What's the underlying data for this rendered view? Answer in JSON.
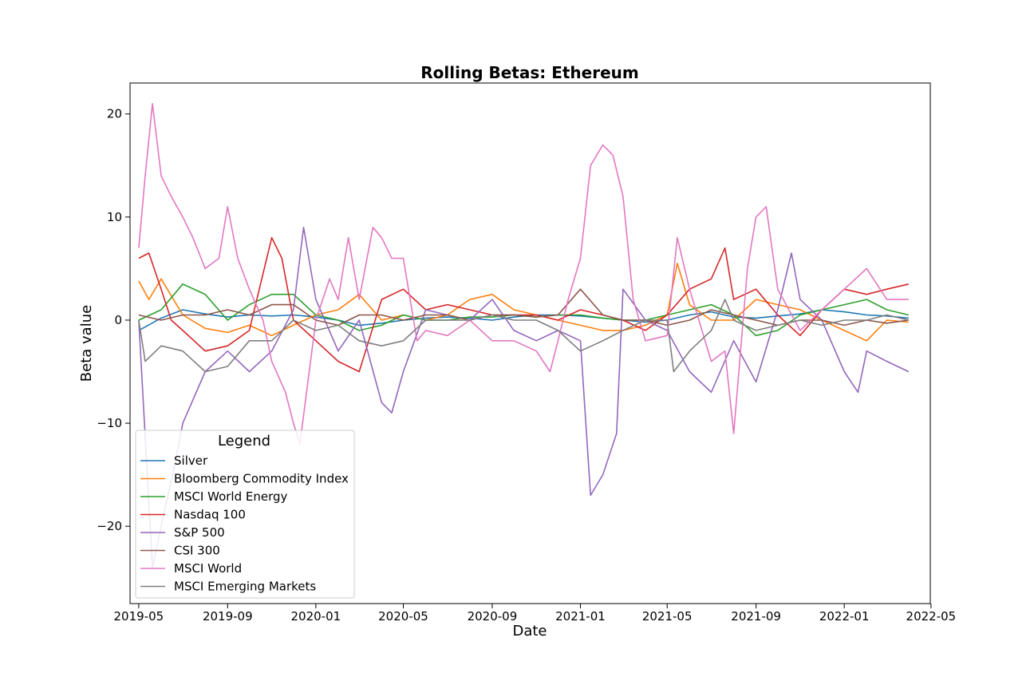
{
  "chart_data": {
    "type": "line",
    "title": "Rolling Betas: Ethereum",
    "xlabel": "Date",
    "ylabel": "Beta value",
    "xlim": [
      "2019-04-19",
      "2022-04-30"
    ],
    "ylim": [
      -27.5,
      23.0
    ],
    "x_ticks": [
      "2019-05-01",
      "2019-09-01",
      "2020-01-01",
      "2020-05-01",
      "2020-09-01",
      "2021-01-01",
      "2021-05-01",
      "2021-09-01",
      "2022-01-01",
      "2022-05-01"
    ],
    "x_tick_labels": [
      "2019-05",
      "2019-09",
      "2020-01",
      "2020-05",
      "2020-09",
      "2021-01",
      "2021-05",
      "2021-09",
      "2022-01",
      "2022-05"
    ],
    "y_ticks": [
      -20,
      -10,
      0,
      10,
      20
    ],
    "y_tick_labels": [
      "−20",
      "−10",
      "0",
      "10",
      "20"
    ],
    "grid": false,
    "legend": {
      "title": "Legend",
      "placement": "lower-left"
    },
    "series": [
      {
        "name": "Silver",
        "color": "#1f77b4",
        "x": [
          "2019-05-01",
          "2019-06-01",
          "2019-07-01",
          "2019-08-01",
          "2019-09-01",
          "2019-10-01",
          "2019-11-01",
          "2019-12-01",
          "2020-01-01",
          "2020-02-01",
          "2020-03-01",
          "2020-04-01",
          "2020-05-01",
          "2020-06-01",
          "2020-07-01",
          "2020-08-01",
          "2020-09-01",
          "2020-10-01",
          "2020-11-01",
          "2020-12-01",
          "2021-01-01",
          "2021-02-01",
          "2021-03-01",
          "2021-04-01",
          "2021-05-01",
          "2021-06-01",
          "2021-07-01",
          "2021-08-01",
          "2021-09-01",
          "2021-10-01",
          "2021-11-01",
          "2021-12-01",
          "2022-01-01",
          "2022-02-01",
          "2022-03-01",
          "2022-03-31"
        ],
        "y": [
          -1.0,
          0.2,
          1.0,
          0.6,
          0.3,
          0.5,
          0.4,
          0.5,
          0.3,
          0.0,
          -0.5,
          -0.3,
          0.0,
          0.2,
          0.3,
          0.2,
          0.0,
          0.3,
          0.5,
          0.5,
          0.4,
          0.2,
          0.0,
          -0.2,
          0.0,
          0.5,
          0.8,
          0.3,
          0.2,
          0.4,
          0.6,
          1.0,
          0.8,
          0.5,
          0.4,
          0.2
        ]
      },
      {
        "name": "Bloomberg Commodity Index",
        "color": "#ff7f0e",
        "x": [
          "2019-05-01",
          "2019-05-15",
          "2019-06-01",
          "2019-07-01",
          "2019-08-01",
          "2019-09-01",
          "2019-10-01",
          "2019-11-01",
          "2019-12-01",
          "2020-01-01",
          "2020-02-01",
          "2020-03-01",
          "2020-04-01",
          "2020-05-01",
          "2020-06-01",
          "2020-07-01",
          "2020-08-01",
          "2020-09-01",
          "2020-10-01",
          "2020-11-01",
          "2020-12-01",
          "2021-01-01",
          "2021-02-01",
          "2021-03-01",
          "2021-04-01",
          "2021-05-01",
          "2021-05-15",
          "2021-06-01",
          "2021-07-01",
          "2021-08-01",
          "2021-09-01",
          "2021-10-01",
          "2021-11-01",
          "2021-12-01",
          "2022-01-01",
          "2022-02-01",
          "2022-03-01",
          "2022-03-31"
        ],
        "y": [
          3.8,
          2.0,
          4.0,
          0.5,
          -0.8,
          -1.2,
          -0.5,
          -1.5,
          -0.5,
          0.5,
          1.0,
          2.5,
          0.0,
          0.5,
          0.0,
          0.5,
          2.0,
          2.5,
          1.0,
          0.5,
          0.0,
          -0.5,
          -1.0,
          -1.0,
          -0.5,
          0.5,
          5.5,
          1.5,
          0.0,
          0.0,
          2.0,
          1.5,
          1.0,
          0.0,
          -1.0,
          -2.0,
          0.0,
          -0.2
        ]
      },
      {
        "name": "MSCI World Energy",
        "color": "#2ca02c",
        "x": [
          "2019-05-01",
          "2019-06-01",
          "2019-07-01",
          "2019-08-01",
          "2019-09-01",
          "2019-10-01",
          "2019-11-01",
          "2019-12-01",
          "2020-01-01",
          "2020-02-01",
          "2020-03-01",
          "2020-04-01",
          "2020-05-01",
          "2020-06-01",
          "2020-07-01",
          "2020-08-01",
          "2020-09-01",
          "2020-10-01",
          "2020-11-01",
          "2020-12-01",
          "2021-01-01",
          "2021-02-01",
          "2021-03-01",
          "2021-04-01",
          "2021-05-01",
          "2021-06-01",
          "2021-07-01",
          "2021-08-01",
          "2021-09-01",
          "2021-10-01",
          "2021-11-01",
          "2021-12-01",
          "2022-01-01",
          "2022-02-01",
          "2022-03-01",
          "2022-03-31"
        ],
        "y": [
          0.0,
          1.0,
          3.5,
          2.5,
          0.0,
          1.5,
          2.5,
          2.5,
          0.5,
          0.0,
          -1.0,
          -0.5,
          0.5,
          0.0,
          0.0,
          0.3,
          0.3,
          0.5,
          0.3,
          0.5,
          0.5,
          0.2,
          0.0,
          0.0,
          0.5,
          1.0,
          1.5,
          0.5,
          -1.5,
          -1.0,
          0.5,
          1.0,
          1.5,
          2.0,
          1.0,
          0.5
        ]
      },
      {
        "name": "Nasdaq 100",
        "color": "#d62728",
        "x": [
          "2019-05-01",
          "2019-05-15",
          "2019-06-01",
          "2019-06-15",
          "2019-07-01",
          "2019-08-01",
          "2019-09-01",
          "2019-10-01",
          "2019-11-01",
          "2019-11-15",
          "2019-12-01",
          "2020-01-01",
          "2020-02-01",
          "2020-03-01",
          "2020-04-01",
          "2020-05-01",
          "2020-06-01",
          "2020-07-01",
          "2020-08-01",
          "2020-09-01",
          "2020-10-01",
          "2020-11-01",
          "2020-12-01",
          "2021-01-01",
          "2021-02-01",
          "2021-03-01",
          "2021-04-01",
          "2021-05-01",
          "2021-06-01",
          "2021-07-01",
          "2021-07-20",
          "2021-08-01",
          "2021-09-01",
          "2021-10-01",
          "2021-11-01",
          "2021-12-01",
          "2022-01-01",
          "2022-02-01",
          "2022-03-01",
          "2022-03-31"
        ],
        "y": [
          6.0,
          6.5,
          3.0,
          0.0,
          -1.0,
          -3.0,
          -2.5,
          -1.0,
          8.0,
          6.0,
          0.0,
          -2.0,
          -4.0,
          -5.0,
          2.0,
          3.0,
          1.0,
          1.5,
          1.0,
          0.5,
          0.5,
          0.5,
          0.0,
          1.0,
          0.5,
          0.0,
          -1.0,
          0.5,
          3.0,
          4.0,
          7.0,
          2.0,
          3.0,
          0.5,
          -1.5,
          1.0,
          3.0,
          2.5,
          3.0,
          3.5
        ]
      },
      {
        "name": "S&P 500",
        "color": "#9467bd",
        "x": [
          "2019-05-01",
          "2019-05-20",
          "2019-06-01",
          "2019-06-20",
          "2019-07-01",
          "2019-08-01",
          "2019-09-01",
          "2019-10-01",
          "2019-11-01",
          "2019-12-01",
          "2019-12-15",
          "2020-01-01",
          "2020-02-01",
          "2020-03-01",
          "2020-04-01",
          "2020-04-15",
          "2020-05-01",
          "2020-06-01",
          "2020-07-01",
          "2020-08-01",
          "2020-09-01",
          "2020-10-01",
          "2020-11-01",
          "2020-12-01",
          "2021-01-01",
          "2021-01-15",
          "2021-02-01",
          "2021-02-20",
          "2021-03-01",
          "2021-04-01",
          "2021-05-01",
          "2021-06-01",
          "2021-07-01",
          "2021-08-01",
          "2021-09-01",
          "2021-10-01",
          "2021-10-20",
          "2021-11-01",
          "2021-12-01",
          "2022-01-01",
          "2022-01-20",
          "2022-02-01",
          "2022-03-01",
          "2022-03-31"
        ],
        "y": [
          0.0,
          -24.0,
          -20.0,
          -14.0,
          -10.0,
          -5.0,
          -3.0,
          -5.0,
          -3.0,
          1.0,
          9.0,
          2.0,
          -3.0,
          0.0,
          -8.0,
          -9.0,
          -5.0,
          1.0,
          0.5,
          0.0,
          2.0,
          -1.0,
          -2.0,
          -1.0,
          -2.0,
          -17.0,
          -15.0,
          -11.0,
          3.0,
          0.0,
          -1.0,
          -5.0,
          -7.0,
          -2.0,
          -6.0,
          1.0,
          6.5,
          2.0,
          0.0,
          -5.0,
          -7.0,
          -3.0,
          -4.0,
          -5.0
        ]
      },
      {
        "name": "CSI 300",
        "color": "#8c564b",
        "x": [
          "2019-05-01",
          "2019-06-01",
          "2019-07-01",
          "2019-08-01",
          "2019-09-01",
          "2019-10-01",
          "2019-11-01",
          "2019-12-01",
          "2020-01-01",
          "2020-02-01",
          "2020-03-01",
          "2020-04-01",
          "2020-05-01",
          "2020-06-01",
          "2020-07-01",
          "2020-08-01",
          "2020-09-01",
          "2020-10-01",
          "2020-11-01",
          "2020-12-01",
          "2021-01-01",
          "2021-02-01",
          "2021-03-01",
          "2021-04-01",
          "2021-05-01",
          "2021-06-01",
          "2021-07-01",
          "2021-08-01",
          "2021-09-01",
          "2021-10-01",
          "2021-11-01",
          "2021-12-01",
          "2022-01-01",
          "2022-02-01",
          "2022-03-01",
          "2022-03-31"
        ],
        "y": [
          0.5,
          0.0,
          0.5,
          0.5,
          1.0,
          0.5,
          1.5,
          1.5,
          0.0,
          -0.5,
          0.5,
          0.5,
          0.0,
          0.5,
          0.5,
          0.0,
          0.5,
          0.5,
          0.3,
          0.5,
          3.0,
          0.5,
          0.0,
          0.0,
          -0.5,
          0.0,
          1.0,
          0.5,
          0.0,
          -0.5,
          0.0,
          0.0,
          -0.5,
          0.0,
          -0.3,
          0.0
        ]
      },
      {
        "name": "MSCI World",
        "color": "#e377c2",
        "x": [
          "2019-05-01",
          "2019-05-10",
          "2019-05-20",
          "2019-06-01",
          "2019-06-15",
          "2019-07-01",
          "2019-07-15",
          "2019-08-01",
          "2019-08-20",
          "2019-09-01",
          "2019-09-15",
          "2019-10-01",
          "2019-10-20",
          "2019-11-01",
          "2019-11-20",
          "2019-12-01",
          "2019-12-10",
          "2020-01-01",
          "2020-01-20",
          "2020-02-01",
          "2020-02-15",
          "2020-03-01",
          "2020-03-20",
          "2020-04-01",
          "2020-04-15",
          "2020-05-01",
          "2020-05-20",
          "2020-06-01",
          "2020-07-01",
          "2020-08-01",
          "2020-09-01",
          "2020-10-01",
          "2020-11-01",
          "2020-11-20",
          "2020-12-01",
          "2020-12-15",
          "2021-01-01",
          "2021-01-15",
          "2021-02-01",
          "2021-02-15",
          "2021-03-01",
          "2021-03-15",
          "2021-04-01",
          "2021-05-01",
          "2021-05-15",
          "2021-06-01",
          "2021-07-01",
          "2021-07-20",
          "2021-08-01",
          "2021-08-20",
          "2021-09-01",
          "2021-09-15",
          "2021-10-01",
          "2021-11-01",
          "2021-12-01",
          "2022-01-01",
          "2022-02-01",
          "2022-03-01",
          "2022-03-31"
        ],
        "y": [
          7.0,
          14.0,
          21.0,
          14.0,
          12.0,
          10.0,
          8.0,
          5.0,
          6.0,
          11.0,
          6.0,
          3.0,
          0.0,
          -4.0,
          -7.0,
          -10.0,
          -12.0,
          0.0,
          4.0,
          2.0,
          8.0,
          2.0,
          9.0,
          8.0,
          6.0,
          6.0,
          -2.0,
          -1.0,
          -1.5,
          0.0,
          -2.0,
          -2.0,
          -3.0,
          -5.0,
          -2.0,
          2.0,
          6.0,
          15.0,
          17.0,
          16.0,
          12.0,
          2.0,
          -2.0,
          -1.5,
          8.0,
          3.0,
          -4.0,
          -3.0,
          -11.0,
          5.0,
          10.0,
          11.0,
          3.0,
          -1.0,
          1.0,
          3.0,
          5.0,
          2.0,
          2.0
        ]
      },
      {
        "name": "MSCI Emerging Markets",
        "color": "#7f7f7f",
        "x": [
          "2019-05-01",
          "2019-05-10",
          "2019-06-01",
          "2019-07-01",
          "2019-08-01",
          "2019-09-01",
          "2019-10-01",
          "2019-11-01",
          "2019-12-01",
          "2020-01-01",
          "2020-02-01",
          "2020-03-01",
          "2020-04-01",
          "2020-05-01",
          "2020-06-01",
          "2020-07-01",
          "2020-08-01",
          "2020-09-01",
          "2020-10-01",
          "2020-11-01",
          "2020-12-01",
          "2021-01-01",
          "2021-02-01",
          "2021-03-01",
          "2021-04-01",
          "2021-05-01",
          "2021-05-10",
          "2021-06-01",
          "2021-07-01",
          "2021-07-20",
          "2021-08-01",
          "2021-09-01",
          "2021-10-01",
          "2021-11-01",
          "2021-12-01",
          "2022-01-01",
          "2022-02-01",
          "2022-03-01",
          "2022-03-31"
        ],
        "y": [
          0.0,
          -4.0,
          -2.5,
          -3.0,
          -5.0,
          -4.5,
          -2.0,
          -2.0,
          0.0,
          -1.0,
          -0.5,
          -2.0,
          -2.5,
          -2.0,
          0.0,
          0.0,
          0.0,
          0.5,
          0.0,
          0.0,
          -1.0,
          -3.0,
          -2.0,
          -1.0,
          0.0,
          0.0,
          -5.0,
          -3.0,
          -1.0,
          2.0,
          0.0,
          -1.0,
          -0.5,
          0.0,
          -0.5,
          0.0,
          0.0,
          0.5,
          0.0
        ]
      }
    ]
  }
}
